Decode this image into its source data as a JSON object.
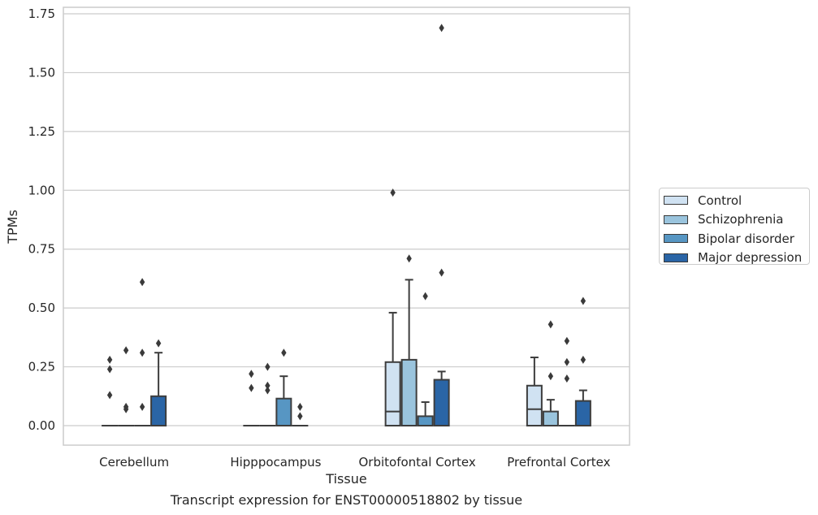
{
  "chart_data": {
    "type": "box",
    "title": "",
    "caption": "Transcript expression for ENST00000518802 by tissue",
    "xlabel": "Tissue",
    "ylabel": "TPMs",
    "ylim": [
      -0.08,
      1.77
    ],
    "yticks": [
      "0.00",
      "0.25",
      "0.50",
      "0.75",
      "1.00",
      "1.25",
      "1.50",
      "1.75"
    ],
    "ytick_values": [
      0,
      0.25,
      0.5,
      0.75,
      1.0,
      1.25,
      1.5,
      1.75
    ],
    "grid": "horizontal",
    "legend_position": "right",
    "categories": [
      "Cerebellum",
      "Hipppocampus",
      "Orbitofontal Cortex",
      "Prefrontal Cortex"
    ],
    "series": [
      {
        "name": "Control",
        "color": "#d0e2f2",
        "boxes": [
          {
            "q1": 0,
            "median": 0,
            "q3": 0,
            "whisker_low": 0,
            "whisker_high": 0,
            "outliers": [
              0.28,
              0.24,
              0.13
            ]
          },
          {
            "q1": 0,
            "median": 0,
            "q3": 0,
            "whisker_low": 0,
            "whisker_high": 0,
            "outliers": [
              0.22,
              0.16
            ]
          },
          {
            "q1": 0,
            "median": 0.06,
            "q3": 0.27,
            "whisker_low": 0,
            "whisker_high": 0.48,
            "outliers": [
              0.99
            ]
          },
          {
            "q1": 0,
            "median": 0.07,
            "q3": 0.17,
            "whisker_low": 0,
            "whisker_high": 0.29,
            "outliers": []
          }
        ]
      },
      {
        "name": "Schizophrenia",
        "color": "#9ac4dd",
        "boxes": [
          {
            "q1": 0,
            "median": 0,
            "q3": 0,
            "whisker_low": 0,
            "whisker_high": 0,
            "outliers": [
              0.32,
              0.08,
              0.07
            ]
          },
          {
            "q1": 0,
            "median": 0,
            "q3": 0,
            "whisker_low": 0,
            "whisker_high": 0,
            "outliers": [
              0.25,
              0.17,
              0.15
            ]
          },
          {
            "q1": 0,
            "median": 0,
            "q3": 0.28,
            "whisker_low": 0,
            "whisker_high": 0.62,
            "outliers": [
              0.71
            ]
          },
          {
            "q1": 0,
            "median": 0,
            "q3": 0.06,
            "whisker_low": 0,
            "whisker_high": 0.11,
            "outliers": [
              0.43,
              0.21
            ]
          }
        ]
      },
      {
        "name": "Bipolar disorder",
        "color": "#5796c3",
        "boxes": [
          {
            "q1": 0,
            "median": 0,
            "q3": 0,
            "whisker_low": 0,
            "whisker_high": 0,
            "outliers": [
              0.61,
              0.31,
              0.08
            ]
          },
          {
            "q1": 0,
            "median": 0,
            "q3": 0.115,
            "whisker_low": 0,
            "whisker_high": 0.21,
            "outliers": [
              0.31
            ]
          },
          {
            "q1": 0,
            "median": 0,
            "q3": 0.04,
            "whisker_low": 0,
            "whisker_high": 0.1,
            "outliers": [
              0.55
            ]
          },
          {
            "q1": 0,
            "median": 0,
            "q3": 0,
            "whisker_low": 0,
            "whisker_high": 0,
            "outliers": [
              0.36,
              0.27,
              0.2
            ]
          }
        ]
      },
      {
        "name": "Major depression",
        "color": "#2a65a6",
        "boxes": [
          {
            "q1": 0,
            "median": 0,
            "q3": 0.125,
            "whisker_low": 0,
            "whisker_high": 0.31,
            "outliers": [
              0.35
            ]
          },
          {
            "q1": 0,
            "median": 0,
            "q3": 0,
            "whisker_low": 0,
            "whisker_high": 0,
            "outliers": [
              0.08,
              0.04
            ]
          },
          {
            "q1": 0,
            "median": 0,
            "q3": 0.195,
            "whisker_low": 0,
            "whisker_high": 0.23,
            "outliers": [
              1.69,
              0.65
            ]
          },
          {
            "q1": 0,
            "median": 0,
            "q3": 0.105,
            "whisker_low": 0,
            "whisker_high": 0.15,
            "outliers": [
              0.53,
              0.28
            ]
          }
        ]
      }
    ]
  }
}
